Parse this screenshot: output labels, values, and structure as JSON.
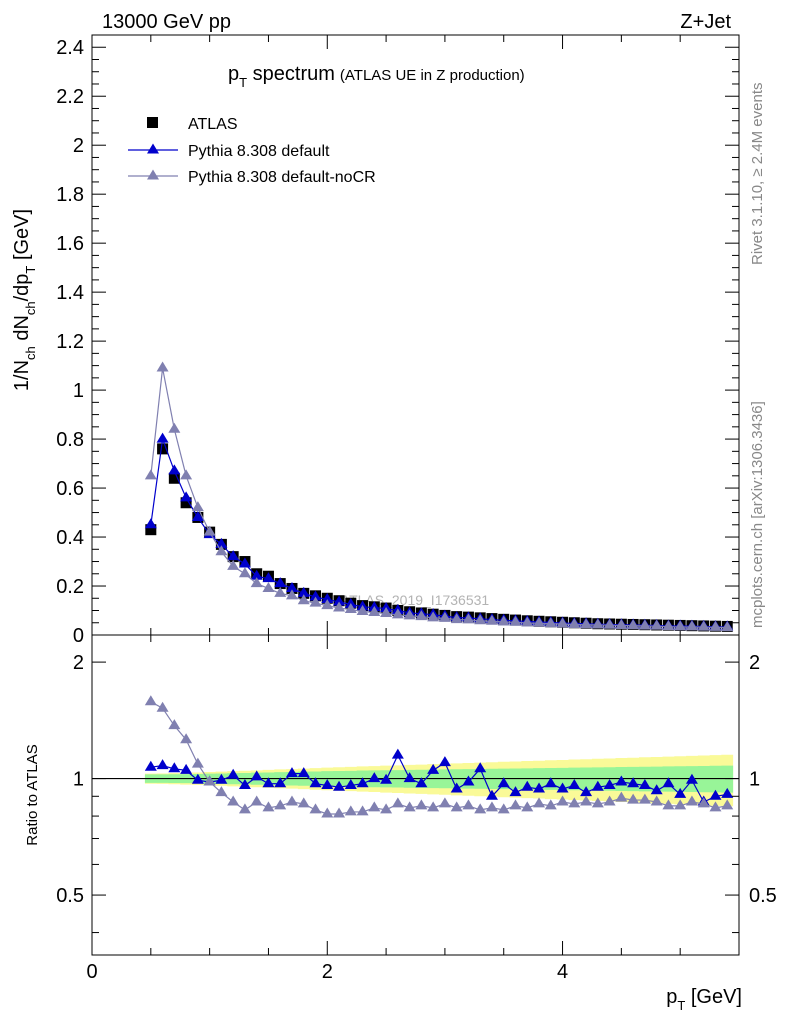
{
  "header": {
    "energy_label": "13000 GeV pp",
    "process_label": "Z+Jet",
    "side_label_top": "Rivet 3.1.10, ≥ 2.4M events",
    "side_label_bottom": "mcplots.cern.ch [arXiv:1306.3436]",
    "watermark": "ATLAS_2019_I1736531"
  },
  "chart_data": [
    {
      "type": "scatter",
      "title": {
        "main": "p",
        "sub": "T",
        "rest": " spectrum",
        "note": "(ATLAS UE in Z production)"
      },
      "ylabel": {
        "a": "1/N",
        "a_sub": "ch",
        "b": " dN",
        "b_sub": "ch",
        "c": "/dp",
        "c_sub": "T",
        "d": " [GeV]"
      },
      "xlim": [
        0,
        5.5
      ],
      "ylim": [
        0,
        2.45
      ],
      "y_ticks": [
        0,
        0.2,
        0.4,
        0.6,
        0.8,
        1,
        1.2,
        1.4,
        1.6,
        1.8,
        2,
        2.2,
        2.4
      ],
      "y_tick_labels": [
        "0",
        "0.2",
        "0.4",
        "0.6",
        "0.8",
        "1",
        "1.2",
        "1.4",
        "1.6",
        "1.8",
        "2",
        "2.2",
        "2.4"
      ],
      "legend_position": "top-left",
      "x": [
        0.5,
        0.6,
        0.7,
        0.8,
        0.9,
        1.0,
        1.1,
        1.2,
        1.3,
        1.4,
        1.5,
        1.6,
        1.7,
        1.8,
        1.9,
        2.0,
        2.1,
        2.2,
        2.3,
        2.4,
        2.5,
        2.6,
        2.7,
        2.8,
        2.9,
        3.0,
        3.1,
        3.2,
        3.3,
        3.4,
        3.5,
        3.6,
        3.7,
        3.8,
        3.9,
        4.0,
        4.1,
        4.2,
        4.3,
        4.4,
        4.5,
        4.6,
        4.7,
        4.8,
        4.9,
        5.0,
        5.1,
        5.2,
        5.3,
        5.4
      ],
      "series": [
        {
          "name": "ATLAS",
          "color": "#000000",
          "marker": "square",
          "line": false,
          "values": [
            0.43,
            0.76,
            0.64,
            0.54,
            0.48,
            0.42,
            0.37,
            0.32,
            0.3,
            0.25,
            0.24,
            0.21,
            0.19,
            0.17,
            0.16,
            0.15,
            0.14,
            0.13,
            0.12,
            0.115,
            0.11,
            0.1,
            0.095,
            0.09,
            0.085,
            0.08,
            0.075,
            0.073,
            0.07,
            0.067,
            0.064,
            0.061,
            0.058,
            0.056,
            0.054,
            0.052,
            0.05,
            0.048,
            0.046,
            0.045,
            0.044,
            0.043,
            0.042,
            0.041,
            0.04,
            0.039,
            0.038,
            0.037,
            0.036,
            0.035
          ]
        },
        {
          "name": "Pythia 8.308 default",
          "color": "#0000cc",
          "marker": "triangle",
          "line": true,
          "values": [
            0.45,
            0.8,
            0.67,
            0.56,
            0.48,
            0.41,
            0.37,
            0.32,
            0.29,
            0.24,
            0.23,
            0.21,
            0.19,
            0.17,
            0.155,
            0.145,
            0.135,
            0.125,
            0.115,
            0.112,
            0.108,
            0.1,
            0.09,
            0.087,
            0.083,
            0.077,
            0.071,
            0.07,
            0.066,
            0.063,
            0.06,
            0.058,
            0.055,
            0.053,
            0.051,
            0.049,
            0.047,
            0.046,
            0.044,
            0.043,
            0.042,
            0.041,
            0.04,
            0.039,
            0.037,
            0.037,
            0.036,
            0.035,
            0.034,
            0.033
          ]
        },
        {
          "name": "Pythia 8.308 default-noCR",
          "color": "#8080b0",
          "marker": "triangle",
          "line": true,
          "values": [
            0.65,
            1.09,
            0.84,
            0.65,
            0.52,
            0.42,
            0.34,
            0.28,
            0.25,
            0.21,
            0.19,
            0.17,
            0.16,
            0.14,
            0.13,
            0.12,
            0.11,
            0.104,
            0.096,
            0.092,
            0.088,
            0.082,
            0.078,
            0.075,
            0.07,
            0.068,
            0.063,
            0.062,
            0.058,
            0.056,
            0.053,
            0.052,
            0.049,
            0.048,
            0.046,
            0.045,
            0.043,
            0.042,
            0.041,
            0.04,
            0.039,
            0.038,
            0.037,
            0.036,
            0.034,
            0.033,
            0.033,
            0.032,
            0.031,
            0.03
          ]
        }
      ]
    },
    {
      "type": "scatter",
      "ylabel": "Ratio to ATLAS",
      "xlabel": {
        "main": "p",
        "sub": "T",
        "rest": " [GeV]"
      },
      "xlim": [
        0,
        5.5
      ],
      "ylim": [
        0.35,
        2.35
      ],
      "log_y": true,
      "x_ticks": [
        0,
        2,
        4
      ],
      "x_tick_labels": [
        "0",
        "2",
        "4"
      ],
      "y_ticks": [
        0.5,
        1,
        2
      ],
      "y_tick_labels": [
        "0.5",
        "1",
        "2"
      ],
      "reference_line": 1,
      "band_colors": {
        "inner": "#98f598",
        "outer": "#fafa98"
      },
      "band_inner_halfwidth": [
        0.025,
        0.025,
        0.026,
        0.027,
        0.028,
        0.03,
        0.031,
        0.033,
        0.034,
        0.036,
        0.037,
        0.039,
        0.04,
        0.042,
        0.043,
        0.045,
        0.046,
        0.047,
        0.049,
        0.05,
        0.051,
        0.052,
        0.053,
        0.054,
        0.055,
        0.056,
        0.057,
        0.058,
        0.059,
        0.06,
        0.061,
        0.062,
        0.063,
        0.064,
        0.065,
        0.066,
        0.067,
        0.068,
        0.069,
        0.07,
        0.071,
        0.072,
        0.073,
        0.074,
        0.075,
        0.076,
        0.077,
        0.078,
        0.079,
        0.08
      ],
      "band_outer_halfwidth": [
        0.03,
        0.031,
        0.033,
        0.035,
        0.037,
        0.04,
        0.042,
        0.045,
        0.048,
        0.05,
        0.053,
        0.056,
        0.058,
        0.061,
        0.064,
        0.067,
        0.07,
        0.072,
        0.075,
        0.077,
        0.08,
        0.082,
        0.085,
        0.087,
        0.09,
        0.092,
        0.095,
        0.097,
        0.1,
        0.102,
        0.105,
        0.107,
        0.11,
        0.112,
        0.115,
        0.117,
        0.12,
        0.122,
        0.125,
        0.127,
        0.13,
        0.132,
        0.135,
        0.137,
        0.14,
        0.142,
        0.145,
        0.147,
        0.15,
        0.152
      ],
      "series": [
        {
          "name": "Pythia 8.308 default",
          "color": "#0000cc",
          "marker": "triangle",
          "line": true,
          "values": [
            1.07,
            1.08,
            1.06,
            1.05,
            0.99,
            0.98,
            0.99,
            1.02,
            0.96,
            1.01,
            0.97,
            0.97,
            1.03,
            1.03,
            0.97,
            0.96,
            0.95,
            0.96,
            0.97,
            1.0,
            0.99,
            1.15,
            1.0,
            0.97,
            1.05,
            1.1,
            0.94,
            0.98,
            1.06,
            0.9,
            0.97,
            0.92,
            0.95,
            0.94,
            0.97,
            0.94,
            0.96,
            0.92,
            0.95,
            0.96,
            0.98,
            0.97,
            0.96,
            0.93,
            0.97,
            0.91,
            0.99,
            0.87,
            0.9,
            0.91
          ]
        },
        {
          "name": "Pythia 8.308 default-noCR",
          "color": "#8080b0",
          "marker": "triangle",
          "line": true,
          "values": [
            1.58,
            1.52,
            1.37,
            1.26,
            1.09,
            0.98,
            0.92,
            0.87,
            0.83,
            0.87,
            0.84,
            0.85,
            0.87,
            0.86,
            0.83,
            0.81,
            0.81,
            0.82,
            0.82,
            0.84,
            0.83,
            0.86,
            0.84,
            0.85,
            0.84,
            0.86,
            0.84,
            0.85,
            0.83,
            0.84,
            0.83,
            0.85,
            0.84,
            0.86,
            0.85,
            0.87,
            0.86,
            0.87,
            0.86,
            0.87,
            0.89,
            0.88,
            0.88,
            0.87,
            0.85,
            0.85,
            0.87,
            0.86,
            0.84,
            0.85
          ]
        }
      ]
    }
  ]
}
